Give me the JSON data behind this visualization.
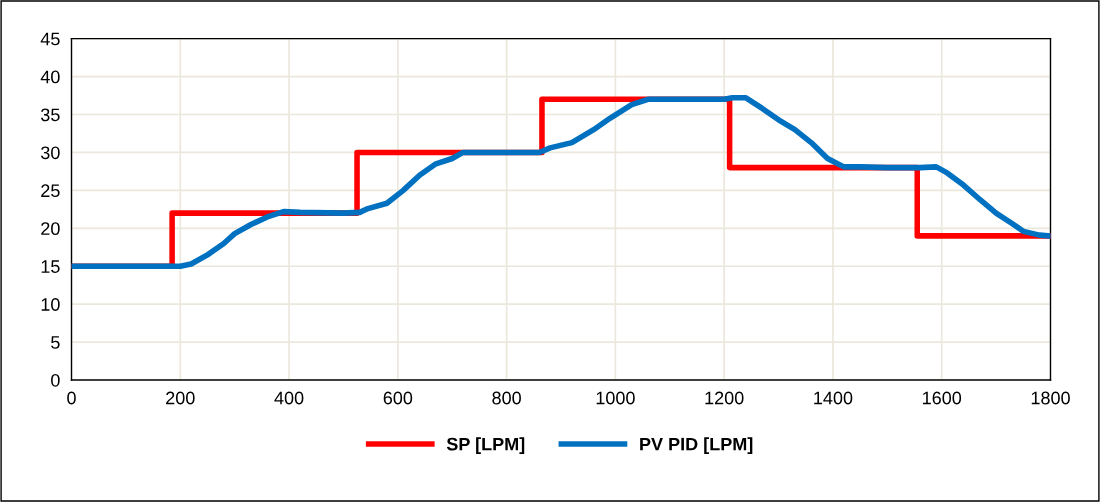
{
  "chart_data": {
    "type": "line",
    "xlim": [
      0,
      1800
    ],
    "xticks": [
      0,
      200,
      400,
      600,
      800,
      1000,
      1200,
      1400,
      1600,
      1800
    ],
    "ylim": [
      0,
      45
    ],
    "yticks": [
      0,
      5,
      10,
      15,
      20,
      25,
      30,
      35,
      40,
      45
    ],
    "grid": true,
    "legend": "bottom",
    "marker": "none",
    "line_style": "solid",
    "series": [
      {
        "name": "SP [LPM]",
        "color": "#ff0000",
        "x": [
          0,
          185,
          185,
          525,
          525,
          865,
          865,
          1210,
          1210,
          1555,
          1555,
          1800
        ],
        "values": [
          15,
          15,
          22,
          22,
          30,
          30,
          37,
          37,
          28,
          28,
          19,
          19
        ]
      },
      {
        "name": "PV PID [LPM]",
        "color": "#0070c0",
        "x": [
          0,
          200,
          220,
          250,
          280,
          300,
          330,
          360,
          390,
          420,
          500,
          530,
          545,
          580,
          610,
          640,
          670,
          700,
          720,
          800,
          860,
          880,
          920,
          960,
          990,
          1030,
          1060,
          1100,
          1150,
          1200,
          1215,
          1240,
          1270,
          1300,
          1330,
          1360,
          1390,
          1420,
          1450,
          1500,
          1560,
          1590,
          1610,
          1640,
          1670,
          1700,
          1730,
          1750,
          1780,
          1800
        ],
        "values": [
          15,
          15,
          15.3,
          16.5,
          18,
          19.3,
          20.5,
          21.5,
          22.2,
          22.1,
          22.0,
          22.1,
          22.6,
          23.3,
          25,
          27,
          28.5,
          29.2,
          30.0,
          30.0,
          30.0,
          30.6,
          31.3,
          33,
          34.5,
          36.3,
          37.0,
          37.0,
          37.0,
          37.0,
          37.2,
          37.2,
          35.8,
          34.3,
          33.0,
          31.3,
          29.2,
          28.1,
          28.1,
          28.0,
          28.0,
          28.1,
          27.3,
          25.7,
          23.8,
          22.0,
          20.6,
          19.6,
          19.1,
          19.0
        ]
      }
    ]
  }
}
